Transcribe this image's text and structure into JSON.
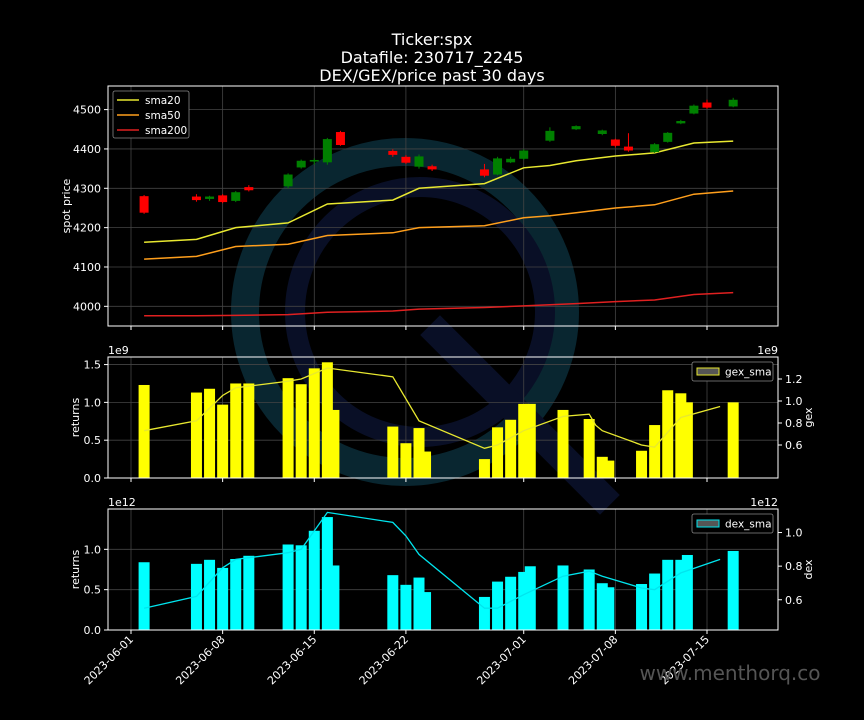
{
  "title_lines": [
    "Ticker:spx",
    "Datafile: 230717_2245",
    "DEX/GEX/price past 30 days"
  ],
  "watermark": "www.menthorq.co",
  "colors": {
    "background": "#000000",
    "grid": "#444444",
    "axes": "#ffffff",
    "up": "#008000",
    "down": "#ff0000",
    "sma20": "#e8e830",
    "sma50": "#ff9f1c",
    "sma200": "#e02020",
    "gex": "#ffff00",
    "gex_sma": "#e8e830",
    "dex": "#00ffff",
    "dex_sma": "#00e5ee"
  },
  "x_ticks": [
    "2023-06-01",
    "2023-06-08",
    "2023-06-15",
    "2023-06-22",
    "2023-07-01",
    "2023-07-08",
    "2023-07-15"
  ],
  "chart_data": [
    {
      "type": "candlestick",
      "ylabel": "spot price",
      "ylim": [
        3950,
        4560
      ],
      "yticks": [
        4000,
        4100,
        4200,
        4300,
        4400,
        4500
      ],
      "grid": true,
      "legend_position": "top-left",
      "dates": [
        "2023-06-02",
        "2023-06-06",
        "2023-06-07",
        "2023-06-08",
        "2023-06-09",
        "2023-06-10",
        "2023-06-13",
        "2023-06-14",
        "2023-06-15",
        "2023-06-16",
        "2023-06-17",
        "2023-06-21",
        "2023-06-22",
        "2023-06-23",
        "2023-06-24",
        "2023-06-28",
        "2023-06-29",
        "2023-06-30",
        "2023-07-01",
        "2023-07-03",
        "2023-07-05",
        "2023-07-07",
        "2023-07-08",
        "2023-07-09",
        "2023-07-11",
        "2023-07-12",
        "2023-07-13",
        "2023-07-14",
        "2023-07-15",
        "2023-07-17"
      ],
      "candles": [
        {
          "o": 4280,
          "c": 4238,
          "h": 4283,
          "l": 4235
        },
        {
          "o": 4279,
          "c": 4270,
          "h": 4285,
          "l": 4266
        },
        {
          "o": 4273,
          "c": 4279,
          "h": 4281,
          "l": 4268
        },
        {
          "o": 4282,
          "c": 4265,
          "h": 4285,
          "l": 4262
        },
        {
          "o": 4268,
          "c": 4290,
          "h": 4293,
          "l": 4265
        },
        {
          "o": 4303,
          "c": 4295,
          "h": 4308,
          "l": 4292
        },
        {
          "o": 4305,
          "c": 4335,
          "h": 4338,
          "l": 4300
        },
        {
          "o": 4353,
          "c": 4370,
          "h": 4373,
          "l": 4350
        },
        {
          "o": 4368,
          "c": 4372,
          "h": 4376,
          "l": 4360
        },
        {
          "o": 4366,
          "c": 4425,
          "h": 4428,
          "l": 4360
        },
        {
          "o": 4443,
          "c": 4410,
          "h": 4446,
          "l": 4408
        },
        {
          "o": 4395,
          "c": 4385,
          "h": 4399,
          "l": 4380
        },
        {
          "o": 4380,
          "c": 4365,
          "h": 4384,
          "l": 4362
        },
        {
          "o": 4355,
          "c": 4381,
          "h": 4386,
          "l": 4350
        },
        {
          "o": 4356,
          "c": 4348,
          "h": 4360,
          "l": 4344
        },
        {
          "o": 4348,
          "c": 4332,
          "h": 4362,
          "l": 4328
        },
        {
          "o": 4335,
          "c": 4376,
          "h": 4380,
          "l": 4333
        },
        {
          "o": 4366,
          "c": 4375,
          "h": 4380,
          "l": 4364
        },
        {
          "o": 4375,
          "c": 4396,
          "h": 4399,
          "l": 4372
        },
        {
          "o": 4421,
          "c": 4446,
          "h": 4455,
          "l": 4418
        },
        {
          "o": 4450,
          "c": 4458,
          "h": 4460,
          "l": 4448
        },
        {
          "o": 4438,
          "c": 4447,
          "h": 4449,
          "l": 4435
        },
        {
          "o": 4424,
          "c": 4408,
          "h": 4426,
          "l": 4404
        },
        {
          "o": 4406,
          "c": 4396,
          "h": 4440,
          "l": 4393
        },
        {
          "o": 4392,
          "c": 4412,
          "h": 4415,
          "l": 4390
        },
        {
          "o": 4418,
          "c": 4441,
          "h": 4443,
          "l": 4416
        },
        {
          "o": 4465,
          "c": 4471,
          "h": 4474,
          "l": 4463
        },
        {
          "o": 4490,
          "c": 4510,
          "h": 4513,
          "l": 4488
        },
        {
          "o": 4518,
          "c": 4505,
          "h": 4525,
          "l": 4502
        },
        {
          "o": 4508,
          "c": 4525,
          "h": 4530,
          "l": 4506
        }
      ],
      "series": [
        {
          "name": "sma20",
          "x": [
            "2023-06-02",
            "2023-06-06",
            "2023-06-09",
            "2023-06-13",
            "2023-06-16",
            "2023-06-21",
            "2023-06-23",
            "2023-06-28",
            "2023-07-01",
            "2023-07-03",
            "2023-07-05",
            "2023-07-08",
            "2023-07-11",
            "2023-07-14",
            "2023-07-17"
          ],
          "values": [
            4163,
            4170,
            4200,
            4212,
            4260,
            4270,
            4300,
            4312,
            4352,
            4358,
            4370,
            4382,
            4390,
            4415,
            4420
          ]
        },
        {
          "name": "sma50",
          "x": [
            "2023-06-02",
            "2023-06-06",
            "2023-06-09",
            "2023-06-13",
            "2023-06-16",
            "2023-06-21",
            "2023-06-23",
            "2023-06-28",
            "2023-07-01",
            "2023-07-03",
            "2023-07-05",
            "2023-07-08",
            "2023-07-11",
            "2023-07-14",
            "2023-07-17"
          ],
          "values": [
            4120,
            4127,
            4152,
            4158,
            4180,
            4187,
            4200,
            4205,
            4225,
            4230,
            4238,
            4250,
            4258,
            4285,
            4293
          ]
        },
        {
          "name": "sma200",
          "x": [
            "2023-06-02",
            "2023-06-06",
            "2023-06-09",
            "2023-06-13",
            "2023-06-16",
            "2023-06-21",
            "2023-06-23",
            "2023-06-28",
            "2023-07-01",
            "2023-07-03",
            "2023-07-05",
            "2023-07-08",
            "2023-07-11",
            "2023-07-14",
            "2023-07-17"
          ],
          "values": [
            3976,
            3976,
            3977,
            3979,
            3985,
            3988,
            3993,
            3997,
            4001,
            4004,
            4007,
            4012,
            4016,
            4030,
            4035
          ]
        }
      ]
    },
    {
      "type": "bar",
      "ylabel": "returns",
      "y2label": "gex",
      "y_exponent": "1e9",
      "y2_exponent": "1e9",
      "ylim": [
        0,
        1.6
      ],
      "yticks": [
        0.0,
        0.5,
        1.0,
        1.5
      ],
      "y2lim": [
        0.3,
        1.4
      ],
      "y2ticks": [
        0.6,
        0.8,
        1.0,
        1.2
      ],
      "grid": true,
      "legend_position": "top-right",
      "bars": [
        {
          "x": "2023-06-02",
          "v": 1.23
        },
        {
          "x": "2023-06-06",
          "v": 1.13
        },
        {
          "x": "2023-06-07",
          "v": 1.18
        },
        {
          "x": "2023-06-08",
          "v": 0.97
        },
        {
          "x": "2023-06-09",
          "v": 1.25
        },
        {
          "x": "2023-06-10",
          "v": 1.25
        },
        {
          "x": "2023-06-13",
          "v": 1.32
        },
        {
          "x": "2023-06-14",
          "v": 1.24
        },
        {
          "x": "2023-06-15",
          "v": 1.45
        },
        {
          "x": "2023-06-16",
          "v": 1.53
        },
        {
          "x": "2023-06-16.5",
          "v": 0.9
        },
        {
          "x": "2023-06-21",
          "v": 0.68
        },
        {
          "x": "2023-06-22",
          "v": 0.46
        },
        {
          "x": "2023-06-23",
          "v": 0.66
        },
        {
          "x": "2023-06-23.5",
          "v": 0.35
        },
        {
          "x": "2023-06-28",
          "v": 0.25
        },
        {
          "x": "2023-06-29",
          "v": 0.67
        },
        {
          "x": "2023-06-30",
          "v": 0.77
        },
        {
          "x": "2023-07-01",
          "v": 0.98
        },
        {
          "x": "2023-07-01.5",
          "v": 0.98
        },
        {
          "x": "2023-07-04",
          "v": 0.9
        },
        {
          "x": "2023-07-06",
          "v": 0.78
        },
        {
          "x": "2023-07-07",
          "v": 0.28
        },
        {
          "x": "2023-07-07.5",
          "v": 0.23
        },
        {
          "x": "2023-07-10",
          "v": 0.36
        },
        {
          "x": "2023-07-11",
          "v": 0.7
        },
        {
          "x": "2023-07-12",
          "v": 1.16
        },
        {
          "x": "2023-07-13",
          "v": 1.12
        },
        {
          "x": "2023-07-13.5",
          "v": 1.0
        },
        {
          "x": "2023-07-17",
          "v": 1.0
        }
      ],
      "sma": {
        "name": "gex_sma",
        "x": [
          "2023-06-02",
          "2023-06-06",
          "2023-06-08",
          "2023-06-09",
          "2023-06-13",
          "2023-06-14",
          "2023-06-16",
          "2023-06-21",
          "2023-06-23",
          "2023-06-28",
          "2023-06-29",
          "2023-07-01",
          "2023-07-04",
          "2023-07-06",
          "2023-07-06.5",
          "2023-07-07",
          "2023-07-10",
          "2023-07-11",
          "2023-07-13",
          "2023-07-16"
        ],
        "values": [
          0.73,
          0.82,
          1.05,
          1.12,
          1.18,
          1.2,
          1.3,
          1.22,
          0.82,
          0.57,
          0.6,
          0.73,
          0.86,
          0.88,
          0.78,
          0.73,
          0.6,
          0.58,
          0.85,
          0.95
        ]
      }
    },
    {
      "type": "bar",
      "ylabel": "returns",
      "y2label": "dex",
      "y_exponent": "1e12",
      "y2_exponent": "1e12",
      "ylim": [
        0,
        1.5
      ],
      "yticks": [
        0.0,
        0.5,
        1.0
      ],
      "y2lim": [
        0.42,
        1.14
      ],
      "y2ticks": [
        0.6,
        0.8,
        1.0
      ],
      "grid": true,
      "legend_position": "top-right",
      "bars": [
        {
          "x": "2023-06-02",
          "v": 0.84
        },
        {
          "x": "2023-06-06",
          "v": 0.82
        },
        {
          "x": "2023-06-07",
          "v": 0.87
        },
        {
          "x": "2023-06-08",
          "v": 0.77
        },
        {
          "x": "2023-06-09",
          "v": 0.88
        },
        {
          "x": "2023-06-10",
          "v": 0.92
        },
        {
          "x": "2023-06-13",
          "v": 1.06
        },
        {
          "x": "2023-06-14",
          "v": 1.05
        },
        {
          "x": "2023-06-15",
          "v": 1.23
        },
        {
          "x": "2023-06-16",
          "v": 1.4
        },
        {
          "x": "2023-06-16.5",
          "v": 0.8
        },
        {
          "x": "2023-06-21",
          "v": 0.68
        },
        {
          "x": "2023-06-22",
          "v": 0.56
        },
        {
          "x": "2023-06-23",
          "v": 0.65
        },
        {
          "x": "2023-06-23.5",
          "v": 0.47
        },
        {
          "x": "2023-06-28",
          "v": 0.41
        },
        {
          "x": "2023-06-29",
          "v": 0.6
        },
        {
          "x": "2023-06-30",
          "v": 0.66
        },
        {
          "x": "2023-07-01",
          "v": 0.72
        },
        {
          "x": "2023-07-01.5",
          "v": 0.79
        },
        {
          "x": "2023-07-04",
          "v": 0.8
        },
        {
          "x": "2023-07-06",
          "v": 0.75
        },
        {
          "x": "2023-07-07",
          "v": 0.58
        },
        {
          "x": "2023-07-07.5",
          "v": 0.53
        },
        {
          "x": "2023-07-10",
          "v": 0.57
        },
        {
          "x": "2023-07-11",
          "v": 0.7
        },
        {
          "x": "2023-07-12",
          "v": 0.87
        },
        {
          "x": "2023-07-13",
          "v": 0.87
        },
        {
          "x": "2023-07-13.5",
          "v": 0.93
        },
        {
          "x": "2023-07-17",
          "v": 0.98
        }
      ],
      "sma": {
        "name": "dex_sma",
        "x": [
          "2023-06-02",
          "2023-06-06",
          "2023-06-08",
          "2023-06-09",
          "2023-06-13",
          "2023-06-14",
          "2023-06-16",
          "2023-06-21",
          "2023-06-22",
          "2023-06-23",
          "2023-06-28",
          "2023-06-29",
          "2023-07-01",
          "2023-07-04",
          "2023-07-06",
          "2023-07-07",
          "2023-07-10",
          "2023-07-11",
          "2023-07-13",
          "2023-07-16"
        ],
        "values": [
          0.55,
          0.62,
          0.79,
          0.84,
          0.88,
          0.9,
          1.12,
          1.06,
          0.98,
          0.87,
          0.55,
          0.55,
          0.63,
          0.74,
          0.77,
          0.74,
          0.67,
          0.66,
          0.76,
          0.84
        ]
      }
    }
  ]
}
